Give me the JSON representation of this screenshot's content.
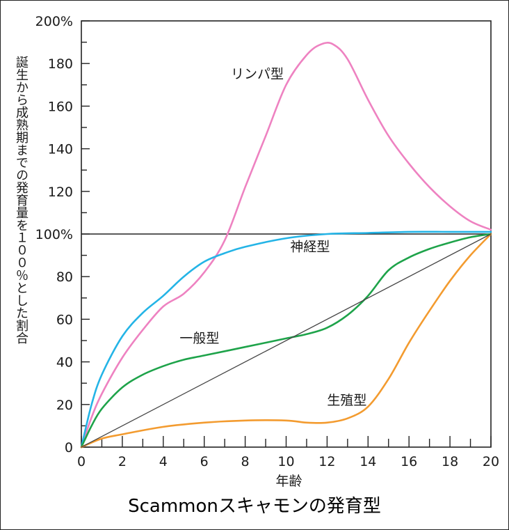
{
  "chart_data": {
    "type": "line",
    "title": "Scammonスキャモンの発育型",
    "xlabel": "年齢",
    "ylabel": "誕生から成熟期までの発育量を１００％とした割合",
    "xlim": [
      0,
      20
    ],
    "ylim": [
      0,
      200
    ],
    "x_ticks": [
      0,
      2,
      4,
      6,
      8,
      10,
      12,
      14,
      16,
      18,
      20
    ],
    "y_ticks": [
      "0",
      "20",
      "40",
      "60",
      "80",
      "100%",
      "120",
      "140",
      "160",
      "180",
      "200%"
    ],
    "y_tick_values": [
      0,
      20,
      40,
      60,
      80,
      100,
      120,
      140,
      160,
      180,
      200
    ],
    "reference_line": 100,
    "series": [
      {
        "name": "リンパ型",
        "color": "#ee82c1",
        "x": [
          0,
          0.5,
          1,
          2,
          3,
          4,
          5,
          6,
          7,
          8,
          9,
          10,
          11,
          11.7,
          12.3,
          13,
          14,
          15,
          16,
          17,
          18,
          19,
          20
        ],
        "y": [
          0,
          14,
          25,
          42,
          55,
          66,
          72,
          82,
          97,
          122,
          146,
          170,
          184,
          189,
          189,
          182,
          163,
          146,
          133,
          122,
          113,
          106,
          102
        ]
      },
      {
        "name": "神経型",
        "color": "#24b4e6",
        "x": [
          0,
          0.5,
          1,
          2,
          3,
          4,
          5,
          6,
          7,
          8,
          10,
          12,
          14,
          16,
          18,
          20
        ],
        "y": [
          0,
          20,
          34,
          52,
          63,
          71,
          80,
          87,
          91,
          94,
          98,
          100,
          100.5,
          101,
          101,
          101
        ]
      },
      {
        "name": "一般型",
        "color": "#1ea34a",
        "x": [
          0,
          0.5,
          1,
          2,
          3,
          4,
          5,
          6,
          8,
          10,
          11,
          12,
          13,
          14,
          15,
          16,
          17,
          18,
          19,
          20
        ],
        "y": [
          0,
          10,
          18,
          28,
          34,
          38,
          41,
          43,
          47,
          51,
          53,
          56,
          62,
          71,
          83,
          89,
          93,
          96,
          98.5,
          100
        ]
      },
      {
        "name": "生殖型",
        "color": "#f39b2f",
        "x": [
          0,
          1,
          2,
          4,
          6,
          8,
          10,
          11,
          12,
          13,
          14,
          15,
          16,
          17,
          18,
          19,
          20
        ],
        "y": [
          0,
          4,
          6,
          9.5,
          11.5,
          12.5,
          12.5,
          11.5,
          11.5,
          13.5,
          19,
          32,
          49,
          64,
          78,
          90,
          100
        ]
      },
      {
        "name": "",
        "color": "#444444",
        "x": [
          0,
          20
        ],
        "y": [
          0,
          100
        ]
      }
    ],
    "annotations": [
      {
        "text": "リンパ型",
        "x": 7.3,
        "y": 173
      },
      {
        "text": "神経型",
        "x": 10.2,
        "y": 92
      },
      {
        "text": "一般型",
        "x": 4.8,
        "y": 49
      },
      {
        "text": "生殖型",
        "x": 12.0,
        "y": 20
      }
    ],
    "grid": false
  }
}
